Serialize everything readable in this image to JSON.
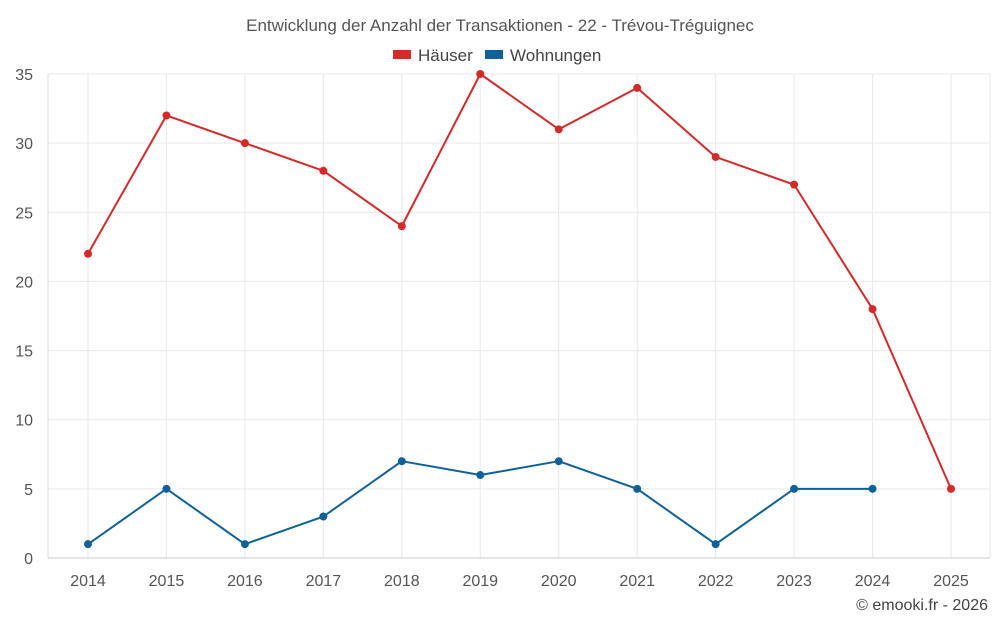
{
  "chart_data": {
    "type": "line",
    "title": "Entwicklung der Anzahl der Transaktionen - 22 - Trévou-Tréguignec",
    "categories": [
      "2014",
      "2015",
      "2016",
      "2017",
      "2018",
      "2019",
      "2020",
      "2021",
      "2022",
      "2023",
      "2024",
      "2025"
    ],
    "series": [
      {
        "name": "Häuser",
        "color": "#d42a2a",
        "values": [
          22,
          32,
          30,
          28,
          24,
          35,
          31,
          34,
          29,
          27,
          18,
          5
        ]
      },
      {
        "name": "Wohnungen",
        "color": "#0f6299",
        "values": [
          1,
          5,
          1,
          3,
          7,
          6,
          7,
          5,
          1,
          5,
          5,
          null
        ]
      }
    ],
    "yticks": [
      0,
      5,
      10,
      15,
      20,
      25,
      30,
      35
    ],
    "ylim": [
      0,
      35
    ],
    "grid": true,
    "legend_position": "top-center",
    "credit": "© emooki.fr - 2026"
  }
}
